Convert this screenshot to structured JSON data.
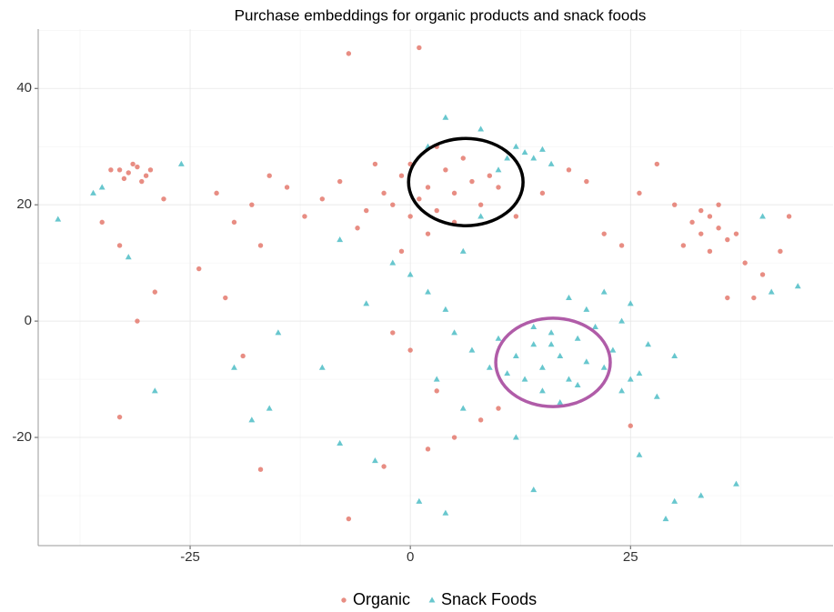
{
  "chart_data": {
    "type": "scatter",
    "title": "Purchase embeddings for organic products and snack foods",
    "xlim": [
      -42.25,
      48
    ],
    "ylim": [
      -38.6,
      50.2
    ],
    "xticks": [
      -25,
      0,
      25
    ],
    "yticks": [
      -20,
      0,
      20,
      40
    ],
    "x_minor_grid": [
      -37.5,
      -12.5,
      12.5,
      37.5
    ],
    "y_minor_grid": [
      -30,
      -10,
      10,
      30,
      50
    ],
    "grid": true,
    "legend": "bottom",
    "series": [
      {
        "name": "Organic",
        "color": "#e4796d",
        "marker": "circle",
        "x": [
          -33,
          -32,
          -31,
          -30,
          -34,
          -31.5,
          -29.5,
          -32.5,
          -30.5,
          -28,
          -35,
          -33,
          -31,
          -33,
          -29,
          -22,
          -20,
          -18,
          -16,
          -17,
          -24,
          -21,
          -19,
          -17,
          -14,
          -12,
          -10,
          -8,
          -7,
          -6,
          -5,
          -4,
          -3,
          -2,
          -1,
          0,
          1,
          2,
          3,
          4,
          5,
          6,
          7,
          8,
          2,
          -1,
          0,
          3,
          5,
          9,
          10,
          1,
          12,
          15,
          18,
          20,
          22,
          -2,
          0,
          3,
          5,
          2,
          8,
          10,
          -3,
          -7,
          25,
          28,
          30,
          32,
          33,
          34,
          35,
          36,
          33,
          35,
          31,
          37,
          34,
          38,
          40,
          42,
          43,
          36,
          39,
          24,
          26
        ],
        "y": [
          26,
          25.5,
          26.5,
          25,
          26,
          27,
          26,
          24.5,
          24,
          21,
          17,
          13,
          0,
          -16.5,
          5,
          22,
          17,
          20,
          25,
          13,
          9,
          4,
          -6,
          -25.5,
          23,
          18,
          21,
          24,
          46,
          16,
          19,
          27,
          22,
          20,
          25,
          18,
          21,
          23,
          19,
          26,
          22,
          28,
          24,
          20,
          15,
          12,
          27,
          30,
          17,
          25,
          23,
          47,
          18,
          22,
          26,
          24,
          15,
          -2,
          -5,
          -12,
          -20,
          -22,
          -17,
          -15,
          -25,
          -34,
          -18,
          27,
          20,
          17,
          15,
          18,
          16,
          14,
          19,
          20,
          13,
          15,
          12,
          10,
          8,
          12,
          18,
          4,
          4,
          13,
          22
        ]
      },
      {
        "name": "Snack Foods",
        "color": "#4dbdc6",
        "marker": "triangle",
        "x": [
          13,
          14,
          12,
          15,
          16,
          11,
          4,
          8,
          2,
          10,
          -2,
          0,
          2,
          4,
          5,
          7,
          10,
          12,
          14,
          15,
          16,
          17,
          18,
          19,
          20,
          21,
          22,
          23,
          24,
          25,
          26,
          27,
          13,
          15,
          17,
          11,
          9,
          20,
          22,
          18,
          14,
          16,
          19,
          24,
          28,
          26,
          14,
          12,
          4,
          1,
          -4,
          -8,
          -10,
          -15,
          -18,
          -16,
          -20,
          -29,
          -35,
          -40,
          -36,
          -26,
          -32,
          -5,
          -8,
          6,
          8,
          30,
          33,
          37,
          40,
          44,
          41,
          29,
          3,
          6,
          30,
          25
        ],
        "y": [
          29,
          28,
          30,
          29.5,
          27,
          28,
          35,
          33,
          30,
          26,
          10,
          8,
          5,
          2,
          -2,
          -5,
          -3,
          -6,
          -4,
          -8,
          -2,
          -6,
          -10,
          -3,
          -7,
          -1,
          -8,
          -5,
          0,
          3,
          -9,
          -4,
          -10,
          -12,
          -14,
          -9,
          -8,
          2,
          5,
          4,
          -1,
          -4,
          -11,
          -12,
          -13,
          -23,
          -29,
          -20,
          -33,
          -31,
          -24,
          -21,
          -8,
          -2,
          -17,
          -15,
          -8,
          -12,
          23,
          17.5,
          22,
          27,
          11,
          3,
          14,
          12,
          18,
          -31,
          -30,
          -28,
          18,
          6,
          5,
          -34,
          -10,
          -15,
          -6,
          -10
        ]
      }
    ],
    "ellipses": [
      {
        "cx": 6.3,
        "cy": 23.9,
        "rx": 6.5,
        "ry": 7.5,
        "color": "#000000"
      },
      {
        "cx": 16.2,
        "cy": -7.1,
        "rx": 6.5,
        "ry": 7.6,
        "color": "#b05ca8"
      }
    ]
  }
}
